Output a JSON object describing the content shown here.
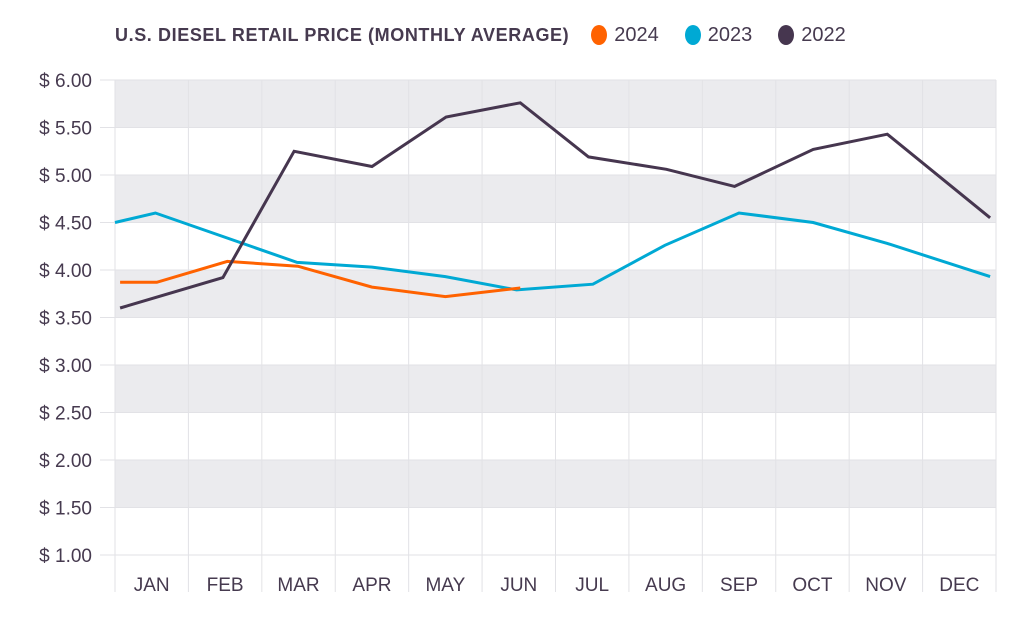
{
  "chart_data": {
    "type": "line",
    "title": "U.S. DIESEL RETAIL PRICE (MONTHLY AVERAGE)",
    "xlabel": "",
    "ylabel": "",
    "categories": [
      "JAN",
      "FEB",
      "MAR",
      "APR",
      "MAY",
      "JUN",
      "JUL",
      "AUG",
      "SEP",
      "OCT",
      "NOV",
      "DEC"
    ],
    "ylim": [
      1.0,
      6.0
    ],
    "y_ticks": [
      1.0,
      1.5,
      2.0,
      2.5,
      3.0,
      3.5,
      4.0,
      4.5,
      5.0,
      5.5,
      6.0
    ],
    "y_tick_labels": [
      "$  1.00",
      "$  1.50",
      "$ 2.00",
      "$ 2.50",
      "$ 3.00",
      "$ 3.50",
      "$ 4.00",
      "$ 4.50",
      "$ 5.00",
      "$ 5.50",
      "$ 6.00"
    ],
    "x_range_months": [
      0,
      12
    ],
    "grid": true,
    "alternating_bands": true,
    "legend_position": "top-right",
    "series": [
      {
        "name": "2024",
        "color": "#ff6200",
        "x_months": [
          0.07,
          0.57,
          1.53,
          2.49,
          3.5,
          4.5,
          5.52
        ],
        "values": [
          3.87,
          3.87,
          4.09,
          4.04,
          3.82,
          3.72,
          3.81
        ]
      },
      {
        "name": "2023",
        "color": "#00a9d4",
        "x_months": [
          0.0,
          0.55,
          2.48,
          3.5,
          4.5,
          5.47,
          6.51,
          7.49,
          8.5,
          9.51,
          10.52,
          11.92
        ],
        "values": [
          4.5,
          4.6,
          4.08,
          4.03,
          3.93,
          3.79,
          3.85,
          4.26,
          4.6,
          4.5,
          4.28,
          3.93
        ]
      },
      {
        "name": "2022",
        "color": "#46364f",
        "x_months": [
          0.07,
          1.47,
          2.44,
          3.5,
          4.51,
          5.52,
          6.45,
          7.51,
          8.44,
          9.51,
          10.52,
          11.92
        ],
        "values": [
          3.6,
          3.92,
          5.25,
          5.09,
          5.61,
          5.76,
          5.19,
          5.06,
          4.88,
          5.27,
          5.43,
          4.55
        ]
      }
    ]
  },
  "colors": {
    "band": "#ebebee",
    "grid": "#e2e2e6",
    "text": "#463a4f"
  }
}
